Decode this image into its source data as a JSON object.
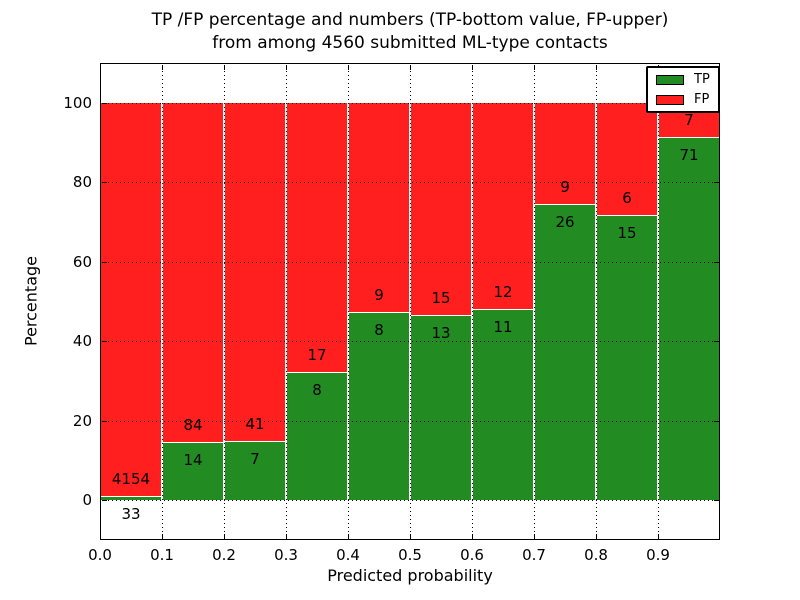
{
  "figure": {
    "title_line1": "TP /FP percentage and numbers (TP-bottom value, FP-upper)",
    "title_line2": "from among 4560 submitted ML-type contacts",
    "xlabel": "Predicted probability",
    "ylabel": "Percentage"
  },
  "legend": {
    "position": "upper right",
    "items": [
      {
        "label": "TP",
        "color": "#228b22"
      },
      {
        "label": "FP",
        "color": "#ff1f1f"
      }
    ]
  },
  "chart_data": {
    "type": "bar",
    "subtype": "stacked-percentage",
    "title": "TP /FP percentage and numbers (TP-bottom value, FP-upper)\nfrom among 4560 submitted ML-type contacts",
    "xlabel": "Predicted probability",
    "ylabel": "Percentage",
    "xlim": [
      0.0,
      1.0
    ],
    "ylim": [
      -10,
      110
    ],
    "bin_width": 0.1,
    "xticks": [
      "0.0",
      "0.1",
      "0.2",
      "0.3",
      "0.4",
      "0.5",
      "0.6",
      "0.7",
      "0.8",
      "0.9"
    ],
    "yticks": [
      0,
      20,
      40,
      60,
      80,
      100
    ],
    "grid": true,
    "grid_style": "dotted",
    "legend_position": "upper right",
    "total_contacts": 4560,
    "categories": [
      "0.0-0.1",
      "0.1-0.2",
      "0.2-0.3",
      "0.3-0.4",
      "0.4-0.5",
      "0.5-0.6",
      "0.6-0.7",
      "0.7-0.8",
      "0.8-0.9",
      "0.9-1.0"
    ],
    "series": [
      {
        "name": "TP",
        "color": "#228b22",
        "counts": [
          33,
          14,
          7,
          8,
          8,
          13,
          11,
          26,
          15,
          71
        ]
      },
      {
        "name": "FP",
        "color": "#ff1f1f",
        "counts": [
          4154,
          84,
          41,
          17,
          9,
          15,
          12,
          9,
          6,
          7
        ]
      }
    ],
    "tp_percent_by_bin": [
      0.79,
      14.29,
      14.58,
      32.0,
      47.06,
      46.43,
      47.83,
      74.29,
      71.43,
      91.03
    ]
  }
}
